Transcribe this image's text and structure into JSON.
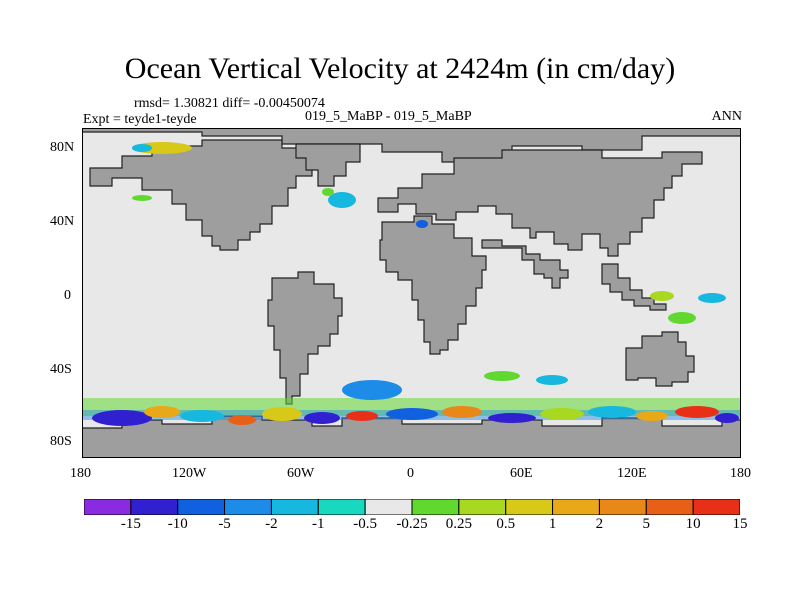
{
  "title": "Ocean Vertical Velocity at 2424m (in cm/day)",
  "stats": "rmsd= 1.30821 diff= -0.00450074",
  "experiment": "Expt = teyde1-teyde",
  "comparison": "019_5_MaBP - 019_5_MaBP",
  "season": "ANN",
  "lat_ticks": [
    "80N",
    "40N",
    "0",
    "40S",
    "80S"
  ],
  "lon_ticks": [
    "180",
    "120W",
    "60W",
    "0",
    "60E",
    "120E",
    "180"
  ],
  "colorbar": {
    "labels": [
      "-15",
      "-10",
      "-5",
      "-2",
      "-1",
      "-0.5",
      "-0.25",
      "0.25",
      "0.5",
      "1",
      "2",
      "5",
      "10",
      "15"
    ],
    "colors": [
      "#8a2be2",
      "#3020d0",
      "#1060e0",
      "#1c8ce8",
      "#16b8e0",
      "#18d8c0",
      "#e8e8e8",
      "#60d830",
      "#a8d820",
      "#d8c818",
      "#e8a818",
      "#e88818",
      "#e86018",
      "#e83018"
    ]
  },
  "colors": {
    "land": "#9e9e9e",
    "ocean_neutral": "#e8e8e8"
  }
}
